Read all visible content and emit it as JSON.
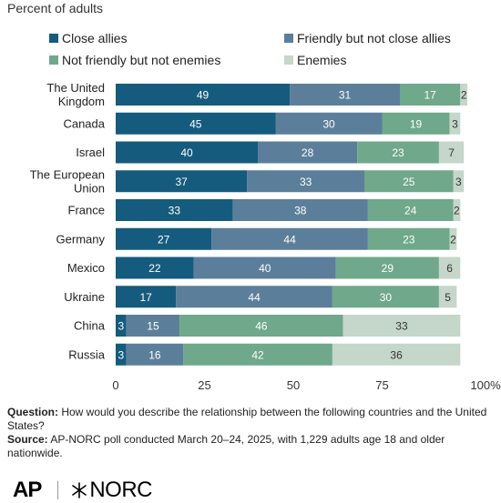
{
  "chart_data": {
    "type": "bar",
    "orientation": "horizontal",
    "stacked": true,
    "subtitle": "Percent of adults",
    "categories": [
      "The United Kingdom",
      "Canada",
      "Israel",
      "The European Union",
      "France",
      "Germany",
      "Mexico",
      "Ukraine",
      "China",
      "Russia"
    ],
    "category_lines": [
      [
        "The United",
        "Kingdom"
      ],
      [
        "Canada"
      ],
      [
        "Israel"
      ],
      [
        "The European",
        "Union"
      ],
      [
        "France"
      ],
      [
        "Germany"
      ],
      [
        "Mexico"
      ],
      [
        "Ukraine"
      ],
      [
        "China"
      ],
      [
        "Russia"
      ]
    ],
    "series": [
      {
        "name": "Close allies",
        "color": "#155b7d",
        "values": [
          49,
          45,
          40,
          37,
          33,
          27,
          22,
          17,
          3,
          3
        ]
      },
      {
        "name": "Friendly but not close allies",
        "color": "#5b7f9a",
        "values": [
          31,
          30,
          28,
          33,
          38,
          44,
          40,
          44,
          15,
          16
        ]
      },
      {
        "name": "Not friendly but not enemies",
        "color": "#6fa88a",
        "values": [
          17,
          19,
          23,
          25,
          24,
          23,
          29,
          30,
          46,
          42
        ]
      },
      {
        "name": "Enemies",
        "color": "#c5d6ca",
        "values": [
          2,
          3,
          7,
          3,
          2,
          2,
          6,
          5,
          33,
          36
        ]
      }
    ],
    "xlim": [
      0,
      100
    ],
    "xticks": [
      "0",
      "25",
      "50",
      "75",
      "100%"
    ],
    "grid": false,
    "legend_position": "top"
  },
  "notes": {
    "question_label": "Question:",
    "question_text": " How would you describe the relationship between the following countries and the United States?",
    "source_label": "Source:",
    "source_text": " AP-NORC poll conducted March 20–24, 2025, with 1,229 adults age 18 and older nationwide."
  },
  "logos": {
    "ap": "AP",
    "norc": "NORC"
  }
}
